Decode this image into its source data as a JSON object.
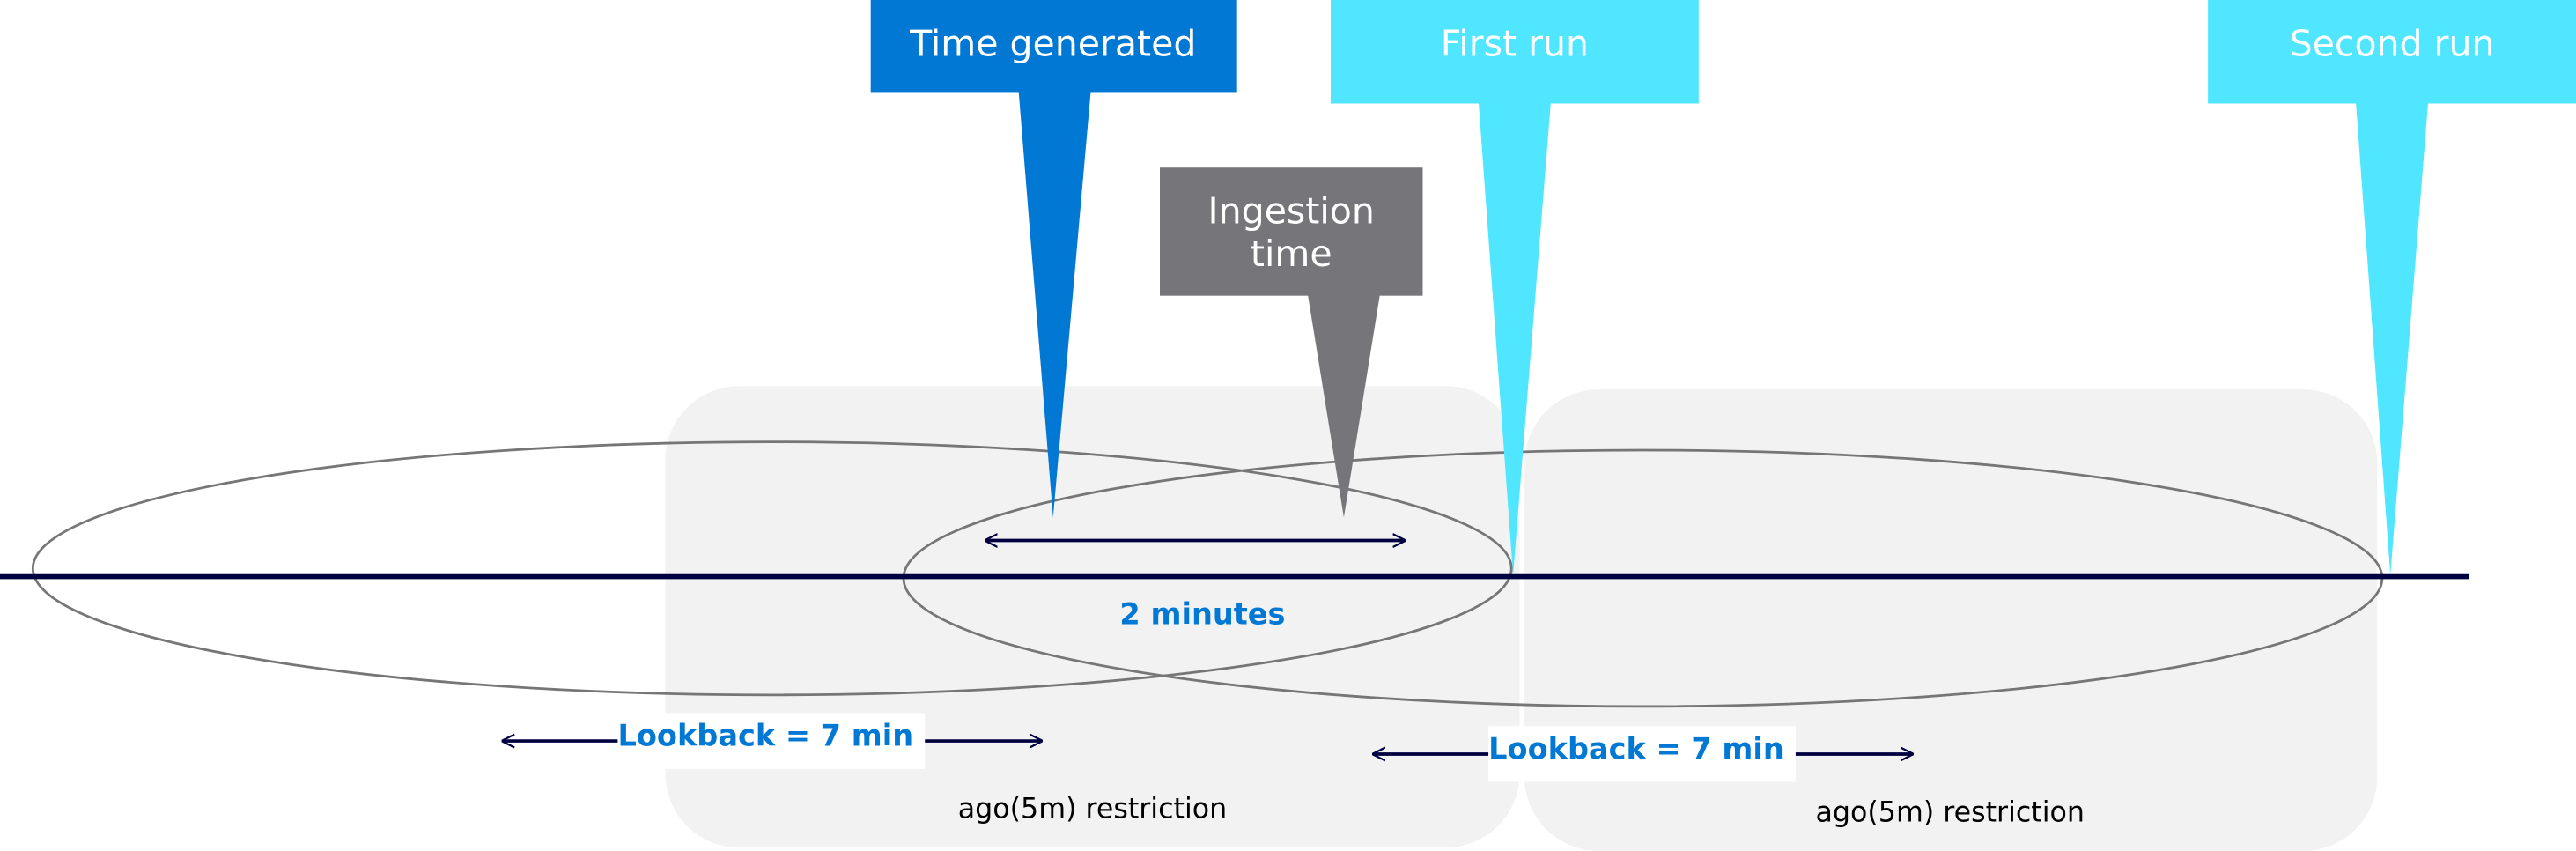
{
  "callouts": {
    "time_generated": {
      "label": "Time generated",
      "color": "#0078d4"
    },
    "ingestion_time": {
      "label_line1": "Ingestion",
      "label_line2": "time",
      "color": "#767579"
    },
    "first_run": {
      "label": "First run",
      "color": "#50e6ff"
    },
    "second_run": {
      "label": "Second run",
      "color": "#50e6ff"
    }
  },
  "delay": {
    "label": "2 minutes"
  },
  "lookbacks": [
    {
      "label": "Lookback = 7 min"
    },
    {
      "label": "Lookback = 7 min"
    }
  ],
  "restrictions": [
    {
      "label": "ago(5m) restriction"
    },
    {
      "label": "ago(5m) restriction"
    }
  ],
  "colors": {
    "timeline": "#000040",
    "accent_text": "#0078d4",
    "window_fill": "#f2f2f2",
    "ellipse": "#767676"
  }
}
